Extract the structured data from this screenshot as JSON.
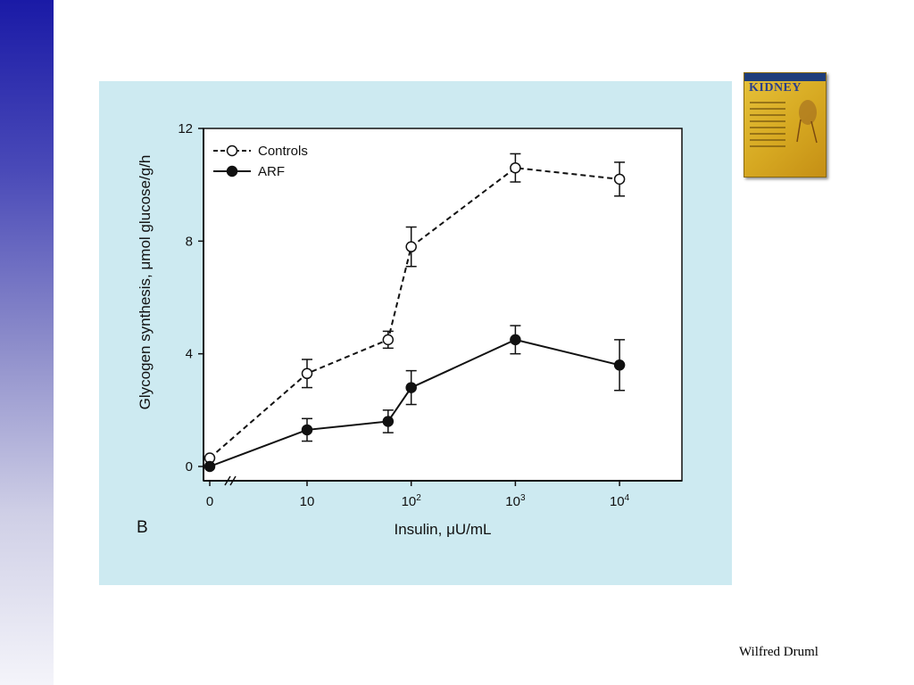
{
  "slide": {
    "author": "Wilfred Druml",
    "book_cover_title": "KIDNEY",
    "panel_label": "B"
  },
  "colors": {
    "panel_background": "#cdeaf1",
    "side_bar_top": "#1a1aa6",
    "side_bar_bottom": "#f4f4fa",
    "series_line": "#111111"
  },
  "chart_data": {
    "type": "line",
    "ylabel": "Glycogen synthesis, μmol glucose/g/h",
    "xlabel": "Insulin, μU/mL",
    "ylim": [
      0,
      12
    ],
    "y_ticks": [
      0,
      4,
      8,
      12
    ],
    "x_scale": "log (with broken axis at 0)",
    "x_ticks": [
      {
        "value": 0,
        "label": "0"
      },
      {
        "value": 10,
        "label": "10"
      },
      {
        "value": 100,
        "label": "10",
        "sup": "2"
      },
      {
        "value": 1000,
        "label": "10",
        "sup": "3"
      },
      {
        "value": 10000,
        "label": "10",
        "sup": "4"
      }
    ],
    "grid": false,
    "legend": "top-left",
    "series": [
      {
        "name": "Controls",
        "style": "dashed-open-circle",
        "points": [
          {
            "x": 0,
            "y": 0.3,
            "err": 0
          },
          {
            "x": 10,
            "y": 3.3,
            "err": 0.5
          },
          {
            "x": 60,
            "y": 4.5,
            "err": 0.3
          },
          {
            "x": 100,
            "y": 7.8,
            "err": 0.7
          },
          {
            "x": 1000,
            "y": 10.6,
            "err": 0.5
          },
          {
            "x": 10000,
            "y": 10.2,
            "err": 0.6
          }
        ]
      },
      {
        "name": "ARF",
        "style": "solid-filled-circle",
        "points": [
          {
            "x": 0,
            "y": 0.0,
            "err": 0
          },
          {
            "x": 10,
            "y": 1.3,
            "err": 0.4
          },
          {
            "x": 60,
            "y": 1.6,
            "err": 0.4
          },
          {
            "x": 100,
            "y": 2.8,
            "err": 0.6
          },
          {
            "x": 1000,
            "y": 4.5,
            "err": 0.5
          },
          {
            "x": 10000,
            "y": 3.6,
            "err": 0.9
          }
        ]
      }
    ]
  }
}
